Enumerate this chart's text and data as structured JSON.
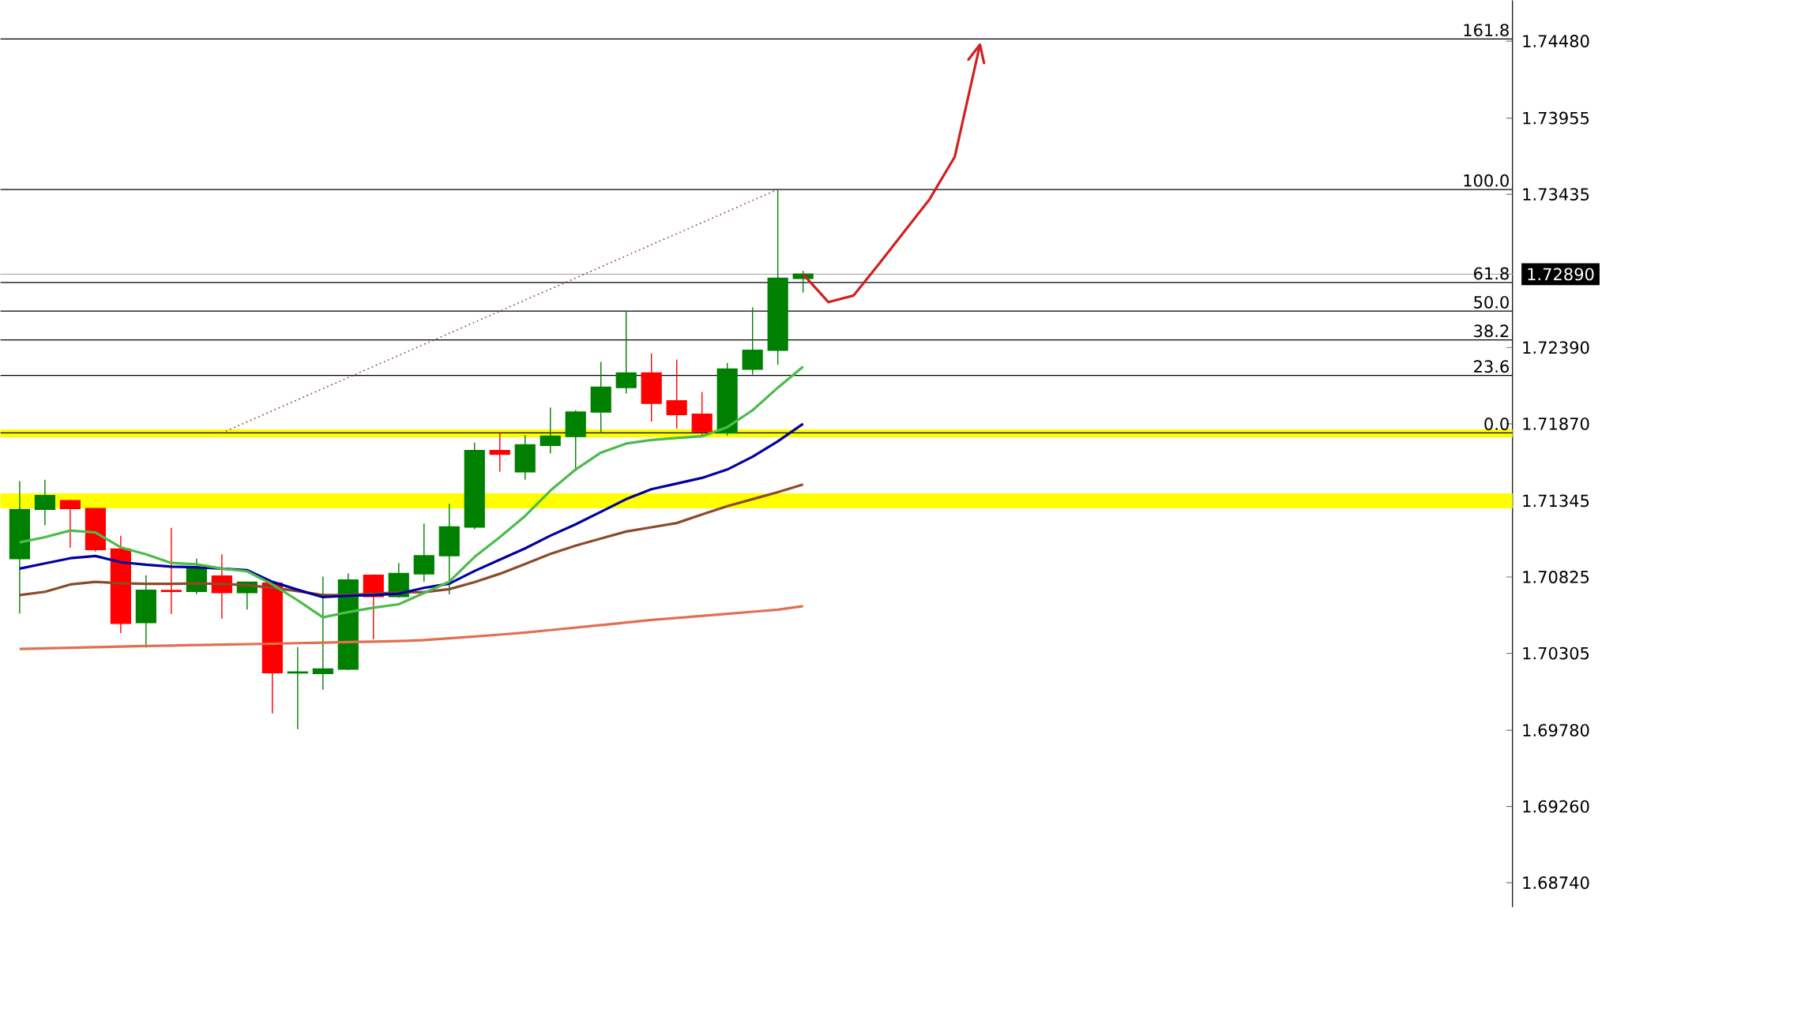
{
  "chart_data": {
    "type": "candlestick",
    "categories": [
      null,
      null,
      null,
      null,
      null,
      null,
      null,
      null,
      null,
      null,
      null,
      null,
      null,
      null,
      null,
      null,
      null,
      null,
      null,
      null,
      null,
      null,
      null,
      null,
      null,
      null,
      null,
      null,
      null,
      null,
      null,
      null,
      null,
      null,
      null,
      null,
      null,
      null,
      null
    ],
    "ohlc": [
      [
        1.7095,
        1.71479,
        1.70576,
        1.71285
      ],
      [
        1.71287,
        1.71488,
        1.71179,
        1.71381
      ],
      [
        1.71345,
        1.7135,
        1.71025,
        1.71292
      ],
      [
        1.71291,
        1.71294,
        1.70998,
        1.71012
      ],
      [
        1.71016,
        1.71106,
        1.70442,
        1.70509
      ],
      [
        1.70514,
        1.70837,
        1.70343,
        1.70735
      ],
      [
        1.70733,
        1.7116,
        1.70573,
        1.70727
      ],
      [
        1.70727,
        1.7095,
        1.70708,
        1.70885
      ],
      [
        1.70832,
        1.7098,
        1.70541,
        1.70719
      ],
      [
        1.70719,
        1.70792,
        1.70603,
        1.70789
      ],
      [
        1.70783,
        1.70783,
        1.69895,
        1.70173
      ],
      [
        1.70171,
        1.70347,
        1.69787,
        1.70177
      ],
      [
        1.70167,
        1.70828,
        1.70057,
        1.70197
      ],
      [
        1.70197,
        1.70849,
        1.70191,
        1.70805
      ],
      [
        1.70837,
        1.70842,
        1.70401,
        1.70692
      ],
      [
        1.70692,
        1.70921,
        1.70684,
        1.70849
      ],
      [
        1.70847,
        1.71189,
        1.70793,
        1.7097
      ],
      [
        1.7097,
        1.71324,
        1.70707,
        1.71166
      ],
      [
        1.71166,
        1.71741,
        1.71151,
        1.71687
      ],
      [
        1.71687,
        1.71808,
        1.71543,
        1.71662
      ],
      [
        1.71543,
        1.71793,
        1.71489,
        1.71726
      ],
      [
        1.71723,
        1.71981,
        1.71668,
        1.71785
      ],
      [
        1.71783,
        1.71962,
        1.71548,
        1.7195
      ],
      [
        1.7195,
        1.72292,
        1.71808,
        1.72119
      ],
      [
        1.72117,
        1.72638,
        1.72077,
        1.72216
      ],
      [
        1.72216,
        1.7235,
        1.71885,
        1.7201
      ],
      [
        1.72027,
        1.72308,
        1.71837,
        1.71933
      ],
      [
        1.71935,
        1.72087,
        1.71779,
        1.71816
      ],
      [
        1.71808,
        1.72285,
        1.71789,
        1.72243
      ],
      [
        1.72243,
        1.72664,
        1.72206,
        1.72371
      ],
      [
        1.72371,
        1.73468,
        1.72273,
        1.72862
      ],
      [
        1.72862,
        1.72913,
        1.72765,
        1.7289
      ],
      null,
      null,
      null,
      null,
      null,
      null,
      null
    ],
    "colors": [
      "#008000",
      "#008000",
      "#ff0000",
      "#ff0000",
      "#ff0000",
      "#008000",
      "#ff0000",
      "#008000",
      "#ff0000",
      "#008000",
      "#ff0000",
      "#008000",
      "#008000",
      "#008000",
      "#ff0000",
      "#008000",
      "#008000",
      "#008000",
      "#008000",
      "#ff0000",
      "#008000",
      "#008000",
      "#008000",
      "#008000",
      "#008000",
      "#ff0000",
      "#ff0000",
      "#ff0000",
      "#008000",
      "#008000",
      "#008000",
      "#008000",
      null,
      null,
      null,
      null,
      null,
      null,
      null
    ],
    "series": [
      {
        "type": "line",
        "color": "#e07050",
        "values": [
          1.70334,
          1.70338,
          1.70342,
          1.70346,
          1.7035,
          1.70354,
          1.70357,
          1.70361,
          1.70364,
          1.70367,
          1.7037,
          1.70374,
          1.70377,
          1.70381,
          1.70384,
          1.70388,
          1.70395,
          1.70407,
          1.70419,
          1.70432,
          1.70446,
          1.70463,
          1.7048,
          1.70497,
          1.70515,
          1.70532,
          1.70546,
          1.7056,
          1.70574,
          1.70588,
          1.70602,
          1.70626,
          null,
          null,
          null,
          null,
          null,
          null,
          null
        ]
      },
      {
        "type": "line",
        "color": "#8b4a2b",
        "values": [
          1.70702,
          1.70724,
          1.70774,
          1.70792,
          1.70783,
          1.70778,
          1.70778,
          1.70781,
          1.70778,
          1.70769,
          1.70752,
          1.70729,
          1.70702,
          1.70702,
          1.70711,
          1.7072,
          1.70722,
          1.70742,
          1.7079,
          1.70847,
          1.70914,
          1.70982,
          1.71039,
          1.71087,
          1.71135,
          1.71164,
          1.71193,
          1.71251,
          1.71308,
          1.71356,
          1.71404,
          1.71456,
          null,
          null,
          null,
          null,
          null,
          null,
          null
        ]
      },
      {
        "type": "line",
        "color": "#0000a0",
        "values": [
          1.70882,
          1.70918,
          1.70953,
          1.70968,
          1.70926,
          1.70909,
          1.70896,
          1.70891,
          1.70882,
          1.70872,
          1.70792,
          1.70738,
          1.70688,
          1.70697,
          1.70702,
          1.70711,
          1.70751,
          1.7078,
          1.70866,
          1.70943,
          1.7102,
          1.71107,
          1.71184,
          1.7127,
          1.71356,
          1.71424,
          1.71462,
          1.71501,
          1.71558,
          1.71645,
          1.7175,
          1.7187,
          null,
          null,
          null,
          null,
          null,
          null,
          null
        ]
      },
      {
        "type": "line",
        "color": "#4cbb4c",
        "values": [
          1.71061,
          1.71097,
          1.71142,
          1.71129,
          1.71027,
          1.7098,
          1.70921,
          1.70912,
          1.70882,
          1.70864,
          1.70774,
          1.70666,
          1.7055,
          1.70586,
          1.70616,
          1.70639,
          1.70716,
          1.70793,
          1.70962,
          1.71097,
          1.71241,
          1.71414,
          1.71558,
          1.71673,
          1.71735,
          1.7176,
          1.71773,
          1.71785,
          1.71847,
          1.71962,
          1.72116,
          1.7226,
          null,
          null,
          null,
          null,
          null,
          null,
          null
        ]
      },
      {
        "type": "line",
        "color": "#8b3a3a",
        "line_style": "dotted",
        "values": [
          null,
          null,
          null,
          null,
          null,
          null,
          null,
          null,
          1.71808,
          1.71883,
          1.71959,
          1.72034,
          1.7211,
          1.72185,
          1.72261,
          1.72336,
          1.72412,
          1.72487,
          1.72563,
          1.72638,
          1.72714,
          1.72789,
          1.72864,
          1.7294,
          1.73015,
          1.73091,
          1.73166,
          1.73242,
          1.73317,
          1.73393,
          1.73468,
          null,
          null,
          null,
          null,
          null,
          null,
          null,
          null
        ]
      },
      {
        "type": "line",
        "color": "#d02020",
        "values": [
          null,
          null,
          null,
          null,
          null,
          null,
          null,
          null,
          null,
          null,
          null,
          null,
          null,
          null,
          null,
          null,
          null,
          null,
          null,
          null,
          null,
          null,
          null,
          null,
          null,
          null,
          null,
          null,
          null,
          null,
          null,
          1.7289,
          1.727,
          1.72745,
          1.7296,
          1.7318,
          1.734,
          1.7369,
          1.74456
        ]
      }
    ],
    "bands": [
      {
        "axis": "y",
        "from": 1.71778,
        "to": 1.71832,
        "color": "#ffff00"
      },
      {
        "axis": "y",
        "from": 1.71293,
        "to": 1.71396,
        "color": "#ffff00"
      }
    ],
    "ref_lines": [
      {
        "axis": "y",
        "value": 1.7289,
        "color": "#b0b0b0"
      },
      {
        "axis": "y",
        "value": 1.71808,
        "color": "#000000"
      },
      {
        "axis": "y",
        "value": 1.722,
        "color": "#000000"
      },
      {
        "axis": "y",
        "value": 1.72442,
        "color": "#000000"
      },
      {
        "axis": "y",
        "value": 1.72638,
        "color": "#000000"
      },
      {
        "axis": "y",
        "value": 1.72834,
        "color": "#000000"
      },
      {
        "axis": "y",
        "value": 1.73468,
        "color": "#000000"
      },
      {
        "axis": "y",
        "value": 1.74494,
        "color": "#000000"
      }
    ],
    "annotations": [
      {
        "text": "0.0",
        "y": 1.71808
      },
      {
        "text": "23.6",
        "y": 1.722
      },
      {
        "text": "38.2",
        "y": 1.72442
      },
      {
        "text": "50.0",
        "y": 1.72638
      },
      {
        "text": "61.8",
        "y": 1.72834
      },
      {
        "text": "100.0",
        "y": 1.73468
      },
      {
        "text": "161.8",
        "y": 1.74494
      }
    ],
    "ylim": [
      1.68573,
      1.74757
    ],
    "yticks": [
      {
        "value": 1.6874,
        "label": "1.68740"
      },
      {
        "value": 1.6926,
        "label": "1.69260"
      },
      {
        "value": 1.6978,
        "label": "1.69780"
      },
      1.70305,
      1.70825,
      1.71345,
      {
        "value": 1.7187,
        "label": "1.71870"
      },
      {
        "value": 1.7239,
        "label": "1.72390"
      },
      {
        "value": 1.7289,
        "label": "1.72890"
      },
      1.73435,
      1.73955,
      {
        "value": 1.7448,
        "label": "1.74480"
      }
    ],
    "tick_labels": "y"
  }
}
